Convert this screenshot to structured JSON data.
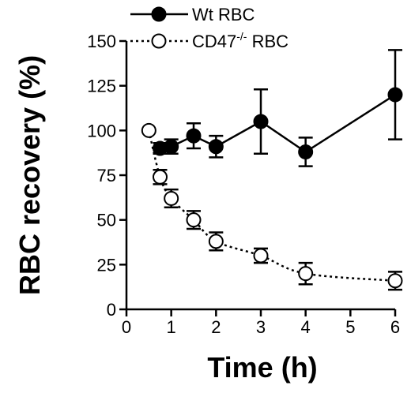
{
  "chart_data": {
    "type": "line",
    "title": "",
    "xlabel": "Time (h)",
    "ylabel": "RBC recovery (%)",
    "xlim": [
      0,
      6
    ],
    "ylim": [
      0,
      150
    ],
    "xticks": [
      0,
      1,
      2,
      3,
      4,
      5,
      6
    ],
    "yticks": [
      0,
      25,
      50,
      75,
      100,
      125,
      150
    ],
    "xtick_labels": [
      "0",
      "1",
      "2",
      "3",
      "4",
      "5",
      "6"
    ],
    "ytick_labels": [
      "0",
      "25",
      "50",
      "75",
      "100",
      "125",
      "150"
    ],
    "grid": false,
    "legend_position": "top-center",
    "series": [
      {
        "name": "Wt RBC",
        "marker": "filled-circle",
        "line": "solid",
        "color": "#000000",
        "x": [
          0.75,
          1,
          1.5,
          2,
          3,
          4,
          6
        ],
        "y": [
          90,
          91,
          97,
          91,
          105,
          88,
          120
        ],
        "err": [
          3,
          4,
          7,
          6,
          18,
          8,
          25
        ]
      },
      {
        "name": "CD47-/- RBC",
        "name_base": "CD47",
        "name_sup": "-/-",
        "name_suffix": " RBC",
        "marker": "open-circle",
        "line": "dotted",
        "color": "#000000",
        "x": [
          0.5,
          0.75,
          1,
          1.5,
          2,
          3,
          4,
          6
        ],
        "y": [
          100,
          74,
          62,
          50,
          38,
          30,
          20,
          16
        ],
        "err": [
          0,
          4,
          5,
          5,
          5,
          4,
          6,
          5
        ]
      }
    ]
  }
}
